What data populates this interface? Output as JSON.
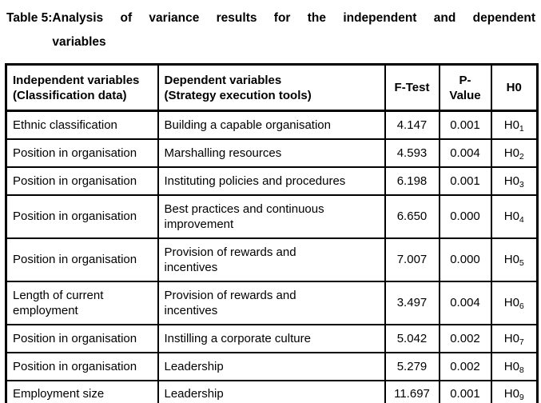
{
  "title": {
    "label": "Table 5:",
    "line1": "Analysis of variance results for the independent and dependent",
    "line2": "variables"
  },
  "table": {
    "headers": {
      "independent": "Independent variables\n(Classification data)",
      "dependent": "Dependent variables\n(Strategy execution tools)",
      "f_test": "F-Test",
      "p_value": "P-\nValue",
      "h0": "H0"
    },
    "rows": [
      {
        "independent": "Ethnic classification",
        "dependent": "Building a capable organisation",
        "f_test": "4.147",
        "p_value": "0.001",
        "h0": "H0",
        "h0_sub": "1"
      },
      {
        "independent": "Position in organisation",
        "dependent": "Marshalling resources",
        "f_test": "4.593",
        "p_value": "0.004",
        "h0": "H0",
        "h0_sub": "2"
      },
      {
        "independent": "Position in organisation",
        "dependent": "Instituting policies and procedures",
        "f_test": "6.198",
        "p_value": "0.001",
        "h0": "H0",
        "h0_sub": "3"
      },
      {
        "independent": "Position in organisation",
        "dependent": "Best practices and continuous\nimprovement",
        "f_test": "6.650",
        "p_value": "0.000",
        "h0": "H0",
        "h0_sub": "4"
      },
      {
        "independent": "Position in organisation",
        "dependent": "Provision of rewards and\nincentives",
        "f_test": "7.007",
        "p_value": "0.000",
        "h0": "H0",
        "h0_sub": "5"
      },
      {
        "independent": "Length of current\nemployment",
        "dependent": "Provision of rewards and\nincentives",
        "f_test": "3.497",
        "p_value": "0.004",
        "h0": "H0",
        "h0_sub": "6"
      },
      {
        "independent": "Position in organisation",
        "dependent": "Instilling a corporate culture",
        "f_test": "5.042",
        "p_value": "0.002",
        "h0": "H0",
        "h0_sub": "7"
      },
      {
        "independent": "Position in organisation",
        "dependent": "Leadership",
        "f_test": "5.279",
        "p_value": "0.002",
        "h0": "H0",
        "h0_sub": "8"
      },
      {
        "independent": "Employment size",
        "dependent": "Leadership",
        "f_test": "11.697",
        "p_value": "0.001",
        "h0": "H0",
        "h0_sub": "9"
      }
    ]
  },
  "colors": {
    "text": "#000000",
    "border": "#000000",
    "background": "#ffffff"
  }
}
